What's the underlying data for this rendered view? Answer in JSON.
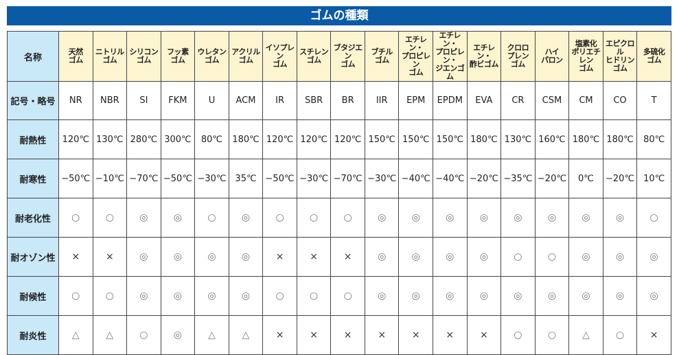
{
  "title": "ゴムの種類",
  "row_labels": {
    "name": "名称",
    "code": "記号・略号",
    "heat": "耐熱性",
    "cold": "耐寒性",
    "aging": "耐老化性",
    "ozone": "耐オゾン性",
    "weather": "耐候性",
    "flame": "耐炎性"
  },
  "rubbers": [
    {
      "name": "天然\nゴム",
      "code": "NR",
      "heat": "120℃",
      "cold": "−50℃",
      "aging": "○",
      "ozone": "×",
      "weather": "○",
      "flame": "△"
    },
    {
      "name": "ニトリル\nゴム",
      "code": "NBR",
      "heat": "130℃",
      "cold": "−10℃",
      "aging": "○",
      "ozone": "×",
      "weather": "○",
      "flame": "△"
    },
    {
      "name": "シリコン\nゴム",
      "code": "SI",
      "heat": "280℃",
      "cold": "−70℃",
      "aging": "◎",
      "ozone": "◎",
      "weather": "◎",
      "flame": "○"
    },
    {
      "name": "フッ素\nゴム",
      "code": "FKM",
      "heat": "300℃",
      "cold": "−50℃",
      "aging": "◎",
      "ozone": "◎",
      "weather": "◎",
      "flame": "◎"
    },
    {
      "name": "ウレタン\nゴム",
      "code": "U",
      "heat": "80℃",
      "cold": "−30℃",
      "aging": "○",
      "ozone": "◎",
      "weather": "◎",
      "flame": "△"
    },
    {
      "name": "アクリル\nゴム",
      "code": "ACM",
      "heat": "180℃",
      "cold": "35℃",
      "aging": "◎",
      "ozone": "◎",
      "weather": "◎",
      "flame": "△"
    },
    {
      "name": "イソプレン\nゴム",
      "code": "IR",
      "heat": "120℃",
      "cold": "−50℃",
      "aging": "○",
      "ozone": "×",
      "weather": "○",
      "flame": "×"
    },
    {
      "name": "スチレン\nゴム",
      "code": "SBR",
      "heat": "120℃",
      "cold": "−30℃",
      "aging": "○",
      "ozone": "×",
      "weather": "○",
      "flame": "×"
    },
    {
      "name": "ブタジエン\nゴム",
      "code": "BR",
      "heat": "120℃",
      "cold": "−70℃",
      "aging": "○",
      "ozone": "×",
      "weather": "○",
      "flame": "×"
    },
    {
      "name": "ブチル\nゴム",
      "code": "IIR",
      "heat": "150℃",
      "cold": "−30℃",
      "aging": "◎",
      "ozone": "◎",
      "weather": "◎",
      "flame": "×"
    },
    {
      "name": "エチレン・\nプロピレン\nゴム",
      "code": "EPM",
      "heat": "150℃",
      "cold": "−40℃",
      "aging": "◎",
      "ozone": "◎",
      "weather": "◎",
      "flame": "×"
    },
    {
      "name": "エチレン・\nプロピレン・\nジエンゴム",
      "code": "EPDM",
      "heat": "150℃",
      "cold": "−40℃",
      "aging": "◎",
      "ozone": "◎",
      "weather": "◎",
      "flame": "×"
    },
    {
      "name": "エチレン・\n酢ビゴム",
      "code": "EVA",
      "heat": "180℃",
      "cold": "−20℃",
      "aging": "◎",
      "ozone": "◎",
      "weather": "◎",
      "flame": "×"
    },
    {
      "name": "クロロ\nプレン\nゴム",
      "code": "CR",
      "heat": "130℃",
      "cold": "−35℃",
      "aging": "◎",
      "ozone": "○",
      "weather": "◎",
      "flame": "○"
    },
    {
      "name": "ハイ\nパロン",
      "code": "CSM",
      "heat": "160℃",
      "cold": "−20℃",
      "aging": "◎",
      "ozone": "○",
      "weather": "◎",
      "flame": "○"
    },
    {
      "name": "塩素化\nポリエチレン\nゴム",
      "code": "CM",
      "heat": "180℃",
      "cold": "0℃",
      "aging": "◎",
      "ozone": "◎",
      "weather": "◎",
      "flame": "△"
    },
    {
      "name": "エピクロル\nヒドリン\nゴム",
      "code": "CO",
      "heat": "180℃",
      "cold": "−20℃",
      "aging": "◎",
      "ozone": "◎",
      "weather": "◎",
      "flame": "○"
    },
    {
      "name": "多硫化\nゴム",
      "code": "T",
      "heat": "80℃",
      "cold": "10℃",
      "aging": "○",
      "ozone": "◎",
      "weather": "◎",
      "flame": "×"
    }
  ],
  "colors": {
    "title_bar": "#0b5aa6",
    "row_header": "#c9e8f8",
    "column_header": "#fdf4d0"
  }
}
